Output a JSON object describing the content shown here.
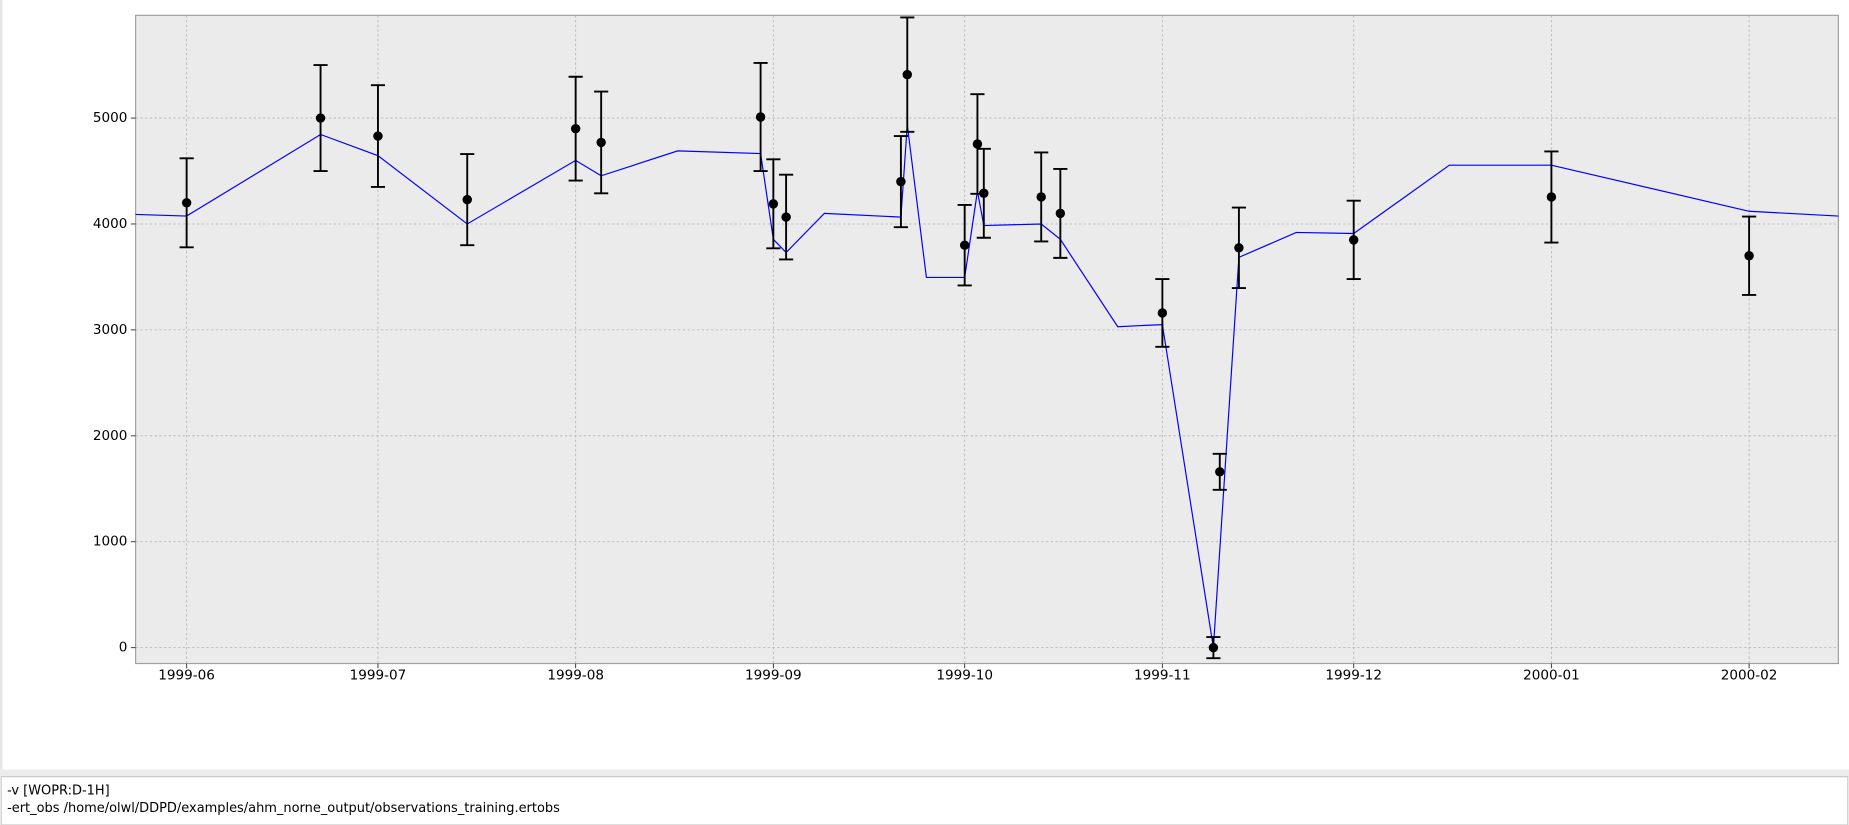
{
  "chart_data": {
    "type": "line",
    "xlim": [
      "1999-05-24",
      "2000-02-15"
    ],
    "xticks": [
      {
        "value": "1999-06-01",
        "label": "1999-06"
      },
      {
        "value": "1999-07-01",
        "label": "1999-07"
      },
      {
        "value": "1999-08-01",
        "label": "1999-08"
      },
      {
        "value": "1999-09-01",
        "label": "1999-09"
      },
      {
        "value": "1999-10-01",
        "label": "1999-10"
      },
      {
        "value": "1999-11-01",
        "label": "1999-11"
      },
      {
        "value": "1999-12-01",
        "label": "1999-12"
      },
      {
        "value": "2000-01-01",
        "label": "2000-01"
      },
      {
        "value": "2000-02-01",
        "label": "2000-02"
      }
    ],
    "ylim": [
      -150,
      5970
    ],
    "yticks": [
      0,
      1000,
      2000,
      3000,
      4000,
      5000
    ],
    "grid": true,
    "series": [
      {
        "kind": "line",
        "color": "#0000ff",
        "x": [
          "1999-05-24",
          "1999-06-01",
          "1999-06-22",
          "1999-07-01",
          "1999-07-15",
          "1999-08-01",
          "1999-08-05",
          "1999-08-17",
          "1999-08-30",
          "1999-09-01",
          "1999-09-03",
          "1999-09-09",
          "1999-09-21",
          "1999-09-22",
          "1999-09-25",
          "1999-10-01",
          "1999-10-03",
          "1999-10-04",
          "1999-10-13",
          "1999-10-16",
          "1999-10-25",
          "1999-11-01",
          "1999-11-09",
          "1999-11-13",
          "1999-11-22",
          "1999-12-01",
          "1999-12-16",
          "2000-01-01",
          "2000-02-01",
          "2000-02-15"
        ],
        "values": [
          4090,
          4075,
          4845,
          4645,
          4000,
          4600,
          4455,
          4690,
          4665,
          3855,
          3730,
          4100,
          4065,
          4935,
          3495,
          3495,
          4310,
          3985,
          4000,
          3855,
          3030,
          3050,
          0,
          3685,
          3920,
          3910,
          4555,
          4555,
          4120,
          4075
        ]
      },
      {
        "kind": "errorbar",
        "color": "#000000",
        "x": [
          "1999-06-01",
          "1999-06-22",
          "1999-07-01",
          "1999-07-15",
          "1999-08-01",
          "1999-08-05",
          "1999-08-30",
          "1999-09-01",
          "1999-09-03",
          "1999-09-21",
          "1999-09-22",
          "1999-10-01",
          "1999-10-03",
          "1999-10-04",
          "1999-10-13",
          "1999-10-16",
          "1999-11-01",
          "1999-11-09",
          "1999-11-10",
          "1999-11-13",
          "1999-12-01",
          "2000-01-01",
          "2000-02-01"
        ],
        "values": [
          4200,
          5000,
          4830,
          4230,
          4900,
          4770,
          5010,
          4190,
          4065,
          4400,
          5410,
          3800,
          4755,
          4290,
          4255,
          4100,
          3160,
          0,
          1660,
          3775,
          3850,
          4255,
          3700
        ],
        "errors": [
          420,
          500,
          480,
          430,
          490,
          480,
          510,
          420,
          400,
          430,
          540,
          380,
          470,
          420,
          420,
          420,
          320,
          100,
          170,
          380,
          370,
          430,
          370
        ]
      }
    ]
  },
  "command_lines": [
    "-v [WOPR:D-1H]",
    "-ert_obs /home/olwl/DDPD/examples/ahm_norne_output/observations_training.ertobs"
  ]
}
